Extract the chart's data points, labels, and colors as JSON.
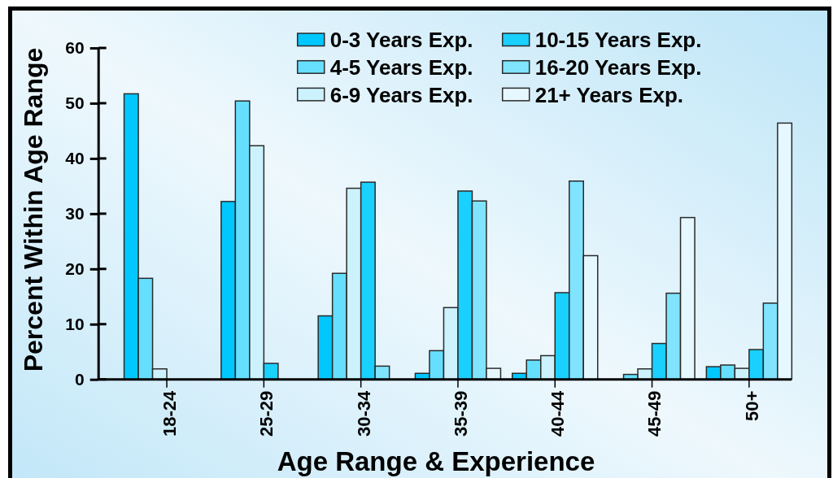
{
  "chart_data": {
    "type": "bar",
    "xlabel": "Age Range & Experience",
    "ylabel": "Percent Within Age Range",
    "categories": [
      "18-24",
      "25-29",
      "30-34",
      "35-39",
      "40-44",
      "45-49",
      "50+"
    ],
    "series": [
      {
        "name": "0-3 Years Exp.",
        "color": "#00c8ff",
        "values": [
          51.7,
          32.2,
          11.5,
          1.1,
          1.1,
          0,
          2.3
        ]
      },
      {
        "name": "4-5 Years Exp.",
        "color": "#66dfff",
        "values": [
          18.3,
          50.4,
          19.2,
          5.2,
          3.5,
          0.9,
          2.6
        ]
      },
      {
        "name": "6-9 Years Exp.",
        "color": "#ccf2fe",
        "values": [
          1.9,
          42.3,
          34.6,
          13.0,
          4.3,
          1.9,
          2.0
        ]
      },
      {
        "name": "10-15 Years Exp.",
        "color": "#1ad0ff",
        "values": [
          0,
          2.9,
          35.7,
          34.1,
          15.7,
          6.5,
          5.4
        ]
      },
      {
        "name": "16-20 Years Exp.",
        "color": "#80e4ff",
        "values": [
          0,
          0,
          2.4,
          32.3,
          35.9,
          15.6,
          13.8
        ]
      },
      {
        "name": "21+ Years Exp.",
        "color": "#e6f8ff",
        "values": [
          0,
          0,
          0,
          2.0,
          22.4,
          29.3,
          46.4
        ]
      }
    ],
    "ylim": [
      0,
      60
    ],
    "yticks": [
      0,
      10,
      20,
      30,
      40,
      50,
      60
    ],
    "legend": "top"
  }
}
